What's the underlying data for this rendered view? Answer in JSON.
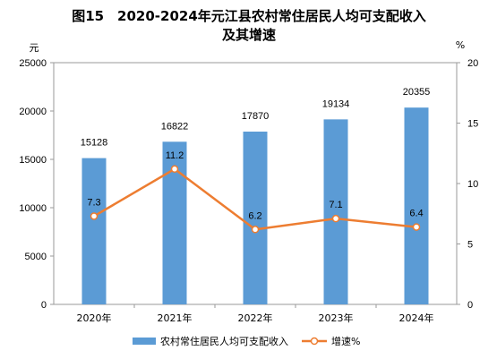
{
  "chart_data": {
    "type": "bar+line",
    "title_line1": "图15　2020-2024年元江县农村常住居民人均可支配收入",
    "title_line2": "及其增速",
    "categories": [
      "2020年",
      "2021年",
      "2022年",
      "2023年",
      "2024年"
    ],
    "left_axis": {
      "unit": "元",
      "ylim": [
        0,
        25000
      ],
      "ticks": [
        "0",
        "5000",
        "10000",
        "15000",
        "20000",
        "25000"
      ]
    },
    "right_axis": {
      "unit": "%",
      "ylim": [
        0,
        20
      ],
      "ticks": [
        "0",
        "5",
        "10",
        "15",
        "20"
      ]
    },
    "series": [
      {
        "name": "农村常住居民人均可支配收入",
        "type": "bar",
        "axis": "left",
        "color": "#5B9BD5",
        "values": [
          15128,
          16822,
          17870,
          19134,
          20355
        ]
      },
      {
        "name": "增速%",
        "type": "line",
        "axis": "right",
        "color": "#ED7D31",
        "values": [
          7.3,
          11.2,
          6.2,
          7.1,
          6.4
        ]
      }
    ],
    "grid": false,
    "legend_position": "bottom"
  }
}
